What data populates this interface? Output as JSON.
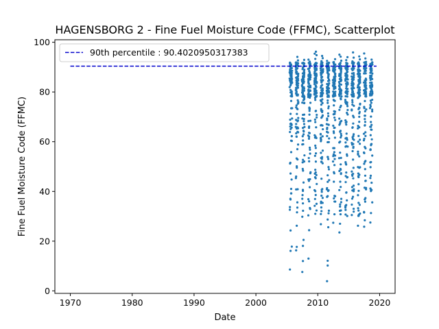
{
  "chart_data": {
    "type": "scatter",
    "title": "HAGENSBORG 2 - Fine Fuel Moisture Code (FFMC), Scatterplot",
    "xlabel": "Date",
    "ylabel": "Fine Fuel Moisture Code (FFMC)",
    "xlim": [
      1967.5,
      2022.5
    ],
    "ylim": [
      -1,
      101
    ],
    "x_ticks": [
      1970,
      1980,
      1990,
      2000,
      2010,
      2020
    ],
    "y_ticks": [
      0,
      20,
      40,
      60,
      80,
      100
    ],
    "grid": false,
    "legend_position": "top-left",
    "point_color": "#1f77b4",
    "reference_line": {
      "label": "90th percentile : 90.4020950317383",
      "y": 90.4020950317383,
      "x_range": [
        1970,
        2019.5
      ],
      "color": "#0000cc",
      "style": "dashed"
    },
    "seasons": [
      {
        "start": 2005.45,
        "end": 2005.85
      },
      {
        "start": 2006.45,
        "end": 2006.85
      },
      {
        "start": 2007.45,
        "end": 2007.85
      },
      {
        "start": 2008.45,
        "end": 2008.85
      },
      {
        "start": 2009.45,
        "end": 2009.85
      },
      {
        "start": 2010.45,
        "end": 2010.85
      },
      {
        "start": 2011.45,
        "end": 2011.85
      },
      {
        "start": 2012.45,
        "end": 2012.85
      },
      {
        "start": 2013.45,
        "end": 2013.85
      },
      {
        "start": 2014.45,
        "end": 2014.85
      },
      {
        "start": 2015.45,
        "end": 2015.85
      },
      {
        "start": 2016.45,
        "end": 2016.85
      },
      {
        "start": 2017.45,
        "end": 2017.85
      },
      {
        "start": 2018.45,
        "end": 2018.85
      }
    ],
    "points": [
      [
        2005.5,
        8.6
      ],
      [
        2005.6,
        16.1
      ],
      [
        2005.6,
        24.3
      ],
      [
        2005.5,
        33.7
      ],
      [
        2005.6,
        47.2
      ],
      [
        2005.7,
        55.8
      ],
      [
        2005.5,
        63.9
      ],
      [
        2005.6,
        71.2
      ],
      [
        2005.7,
        76.4
      ],
      [
        2005.6,
        80.8
      ],
      [
        2005.5,
        84.6
      ],
      [
        2005.7,
        86.9
      ],
      [
        2005.6,
        88.4
      ],
      [
        2005.8,
        89.6
      ],
      [
        2005.7,
        90.7
      ],
      [
        2005.5,
        91.8
      ],
      [
        2005.8,
        17.8
      ],
      [
        2005.7,
        41.0
      ],
      [
        2005.8,
        60.3
      ],
      [
        2005.8,
        79.2
      ],
      [
        2006.5,
        16.3
      ],
      [
        2006.6,
        17.7
      ],
      [
        2006.6,
        26.2
      ],
      [
        2006.7,
        33.5
      ],
      [
        2006.5,
        40.8
      ],
      [
        2006.6,
        50.1
      ],
      [
        2006.7,
        57.0
      ],
      [
        2006.6,
        65.3
      ],
      [
        2006.5,
        73.8
      ],
      [
        2006.7,
        78.9
      ],
      [
        2006.6,
        83.4
      ],
      [
        2006.8,
        86.2
      ],
      [
        2006.5,
        88.0
      ],
      [
        2006.7,
        89.5
      ],
      [
        2006.6,
        91.3
      ],
      [
        2006.8,
        92.7
      ],
      [
        2006.7,
        94.1
      ],
      [
        2006.8,
        68.5
      ],
      [
        2006.5,
        46.0
      ],
      [
        2006.8,
        81.7
      ],
      [
        2007.5,
        7.6
      ],
      [
        2007.6,
        12.0
      ],
      [
        2007.6,
        18.1
      ],
      [
        2007.7,
        20.5
      ],
      [
        2007.5,
        29.8
      ],
      [
        2007.6,
        35.2
      ],
      [
        2007.7,
        43.6
      ],
      [
        2007.6,
        52.7
      ],
      [
        2007.5,
        58.9
      ],
      [
        2007.7,
        64.4
      ],
      [
        2007.6,
        70.8
      ],
      [
        2007.8,
        75.5
      ],
      [
        2007.5,
        79.7
      ],
      [
        2007.7,
        83.6
      ],
      [
        2007.6,
        86.4
      ],
      [
        2007.8,
        88.7
      ],
      [
        2007.7,
        90.2
      ],
      [
        2007.5,
        91.6
      ],
      [
        2007.8,
        92.9
      ],
      [
        2007.6,
        40.2
      ],
      [
        2008.5,
        13.0
      ],
      [
        2008.6,
        24.4
      ],
      [
        2008.6,
        36.0
      ],
      [
        2008.7,
        41.7
      ],
      [
        2008.5,
        44.8
      ],
      [
        2008.6,
        52.1
      ],
      [
        2008.7,
        57.6
      ],
      [
        2008.6,
        62.0
      ],
      [
        2008.5,
        68.3
      ],
      [
        2008.7,
        73.2
      ],
      [
        2008.6,
        78.0
      ],
      [
        2008.8,
        82.5
      ],
      [
        2008.5,
        85.3
      ],
      [
        2008.7,
        87.8
      ],
      [
        2008.6,
        89.4
      ],
      [
        2008.8,
        90.8
      ],
      [
        2008.7,
        92.2
      ],
      [
        2008.5,
        93.0
      ],
      [
        2008.8,
        47.3
      ],
      [
        2008.6,
        66.1
      ],
      [
        2009.5,
        34.2
      ],
      [
        2009.6,
        40.1
      ],
      [
        2009.6,
        48.7
      ],
      [
        2009.7,
        55.3
      ],
      [
        2009.5,
        62.6
      ],
      [
        2009.6,
        67.9
      ],
      [
        2009.7,
        72.4
      ],
      [
        2009.6,
        76.8
      ],
      [
        2009.5,
        80.3
      ],
      [
        2009.7,
        83.9
      ],
      [
        2009.6,
        86.7
      ],
      [
        2009.8,
        88.9
      ],
      [
        2009.5,
        90.4
      ],
      [
        2009.7,
        91.7
      ],
      [
        2009.6,
        93.3
      ],
      [
        2009.8,
        94.8
      ],
      [
        2009.7,
        96.2
      ],
      [
        2009.5,
        95.4
      ],
      [
        2009.8,
        35.0
      ],
      [
        2009.6,
        58.4
      ],
      [
        2010.5,
        26.8
      ],
      [
        2010.6,
        38.3
      ],
      [
        2010.6,
        45.1
      ],
      [
        2010.7,
        53.8
      ],
      [
        2010.5,
        60.2
      ],
      [
        2010.6,
        66.7
      ],
      [
        2010.7,
        71.9
      ],
      [
        2010.6,
        76.2
      ],
      [
        2010.5,
        79.6
      ],
      [
        2010.7,
        82.8
      ],
      [
        2010.6,
        85.7
      ],
      [
        2010.8,
        87.9
      ],
      [
        2010.5,
        89.6
      ],
      [
        2010.7,
        91.0
      ],
      [
        2010.6,
        92.4
      ],
      [
        2010.8,
        93.6
      ],
      [
        2010.7,
        94.5
      ],
      [
        2010.5,
        30.9
      ],
      [
        2010.8,
        56.4
      ],
      [
        2010.6,
        84.1
      ],
      [
        2011.5,
        3.9
      ],
      [
        2011.6,
        10.2
      ],
      [
        2011.6,
        12.1
      ],
      [
        2011.7,
        25.6
      ],
      [
        2011.5,
        37.8
      ],
      [
        2011.6,
        46.5
      ],
      [
        2011.7,
        53.0
      ],
      [
        2011.6,
        59.8
      ],
      [
        2011.5,
        65.1
      ],
      [
        2011.7,
        70.3
      ],
      [
        2011.6,
        75.6
      ],
      [
        2011.8,
        79.8
      ],
      [
        2011.5,
        83.2
      ],
      [
        2011.7,
        86.0
      ],
      [
        2011.6,
        88.3
      ],
      [
        2011.8,
        89.9
      ],
      [
        2011.7,
        91.2
      ],
      [
        2011.5,
        92.5
      ],
      [
        2011.8,
        48.9
      ],
      [
        2011.6,
        28.7
      ],
      [
        2012.5,
        27.4
      ],
      [
        2012.6,
        37.2
      ],
      [
        2012.6,
        43.9
      ],
      [
        2012.7,
        50.6
      ],
      [
        2012.5,
        57.4
      ],
      [
        2012.6,
        63.5
      ],
      [
        2012.7,
        69.7
      ],
      [
        2012.6,
        74.6
      ],
      [
        2012.5,
        78.6
      ],
      [
        2012.7,
        82.0
      ],
      [
        2012.6,
        85.1
      ],
      [
        2012.8,
        87.4
      ],
      [
        2012.5,
        89.1
      ],
      [
        2012.7,
        90.6
      ],
      [
        2012.6,
        92.0
      ],
      [
        2012.8,
        93.2
      ],
      [
        2012.7,
        30.8
      ],
      [
        2012.5,
        54.2
      ],
      [
        2012.8,
        72.1
      ],
      [
        2012.6,
        88.2
      ],
      [
        2013.5,
        23.5
      ],
      [
        2013.6,
        27.0
      ],
      [
        2013.6,
        33.9
      ],
      [
        2013.7,
        41.8
      ],
      [
        2013.5,
        48.2
      ],
      [
        2013.6,
        55.6
      ],
      [
        2013.7,
        61.7
      ],
      [
        2013.6,
        67.3
      ],
      [
        2013.5,
        72.8
      ],
      [
        2013.7,
        77.4
      ],
      [
        2013.6,
        81.3
      ],
      [
        2013.8,
        84.7
      ],
      [
        2013.5,
        87.2
      ],
      [
        2013.7,
        89.0
      ],
      [
        2013.6,
        90.9
      ],
      [
        2013.8,
        92.6
      ],
      [
        2013.7,
        94.2
      ],
      [
        2013.5,
        95.0
      ],
      [
        2013.8,
        37.0
      ],
      [
        2013.6,
        64.0
      ],
      [
        2014.5,
        30.7
      ],
      [
        2014.6,
        39.5
      ],
      [
        2014.6,
        47.6
      ],
      [
        2014.7,
        54.9
      ],
      [
        2014.5,
        61.3
      ],
      [
        2014.6,
        66.9
      ],
      [
        2014.7,
        71.6
      ],
      [
        2014.6,
        76.0
      ],
      [
        2014.5,
        79.9
      ],
      [
        2014.7,
        83.1
      ],
      [
        2014.6,
        85.9
      ],
      [
        2014.8,
        88.1
      ],
      [
        2014.5,
        89.8
      ],
      [
        2014.7,
        91.4
      ],
      [
        2014.6,
        92.8
      ],
      [
        2014.8,
        94.0
      ],
      [
        2014.7,
        36.4
      ],
      [
        2014.5,
        58.0
      ],
      [
        2014.8,
        74.3
      ],
      [
        2014.6,
        87.0
      ],
      [
        2015.5,
        30.5
      ],
      [
        2015.6,
        40.4
      ],
      [
        2015.6,
        46.3
      ],
      [
        2015.7,
        52.8
      ],
      [
        2015.5,
        59.5
      ],
      [
        2015.6,
        65.6
      ],
      [
        2015.7,
        70.4
      ],
      [
        2015.6,
        74.9
      ],
      [
        2015.5,
        78.8
      ],
      [
        2015.7,
        82.4
      ],
      [
        2015.6,
        85.4
      ],
      [
        2015.8,
        87.6
      ],
      [
        2015.5,
        89.3
      ],
      [
        2015.7,
        90.9
      ],
      [
        2015.6,
        92.3
      ],
      [
        2015.8,
        93.8
      ],
      [
        2015.7,
        95.9
      ],
      [
        2015.5,
        48.0
      ],
      [
        2015.8,
        63.0
      ],
      [
        2015.6,
        80.5
      ],
      [
        2016.5,
        26.2
      ],
      [
        2016.6,
        35.4
      ],
      [
        2016.6,
        42.9
      ],
      [
        2016.7,
        49.5
      ],
      [
        2016.5,
        56.0
      ],
      [
        2016.6,
        62.3
      ],
      [
        2016.7,
        68.0
      ],
      [
        2016.6,
        73.1
      ],
      [
        2016.5,
        77.6
      ],
      [
        2016.7,
        81.5
      ],
      [
        2016.6,
        84.8
      ],
      [
        2016.8,
        87.3
      ],
      [
        2016.5,
        89.0
      ],
      [
        2016.7,
        90.5
      ],
      [
        2016.6,
        91.9
      ],
      [
        2016.8,
        93.1
      ],
      [
        2016.7,
        94.3
      ],
      [
        2016.5,
        38.5
      ],
      [
        2016.8,
        60.8
      ],
      [
        2016.6,
        83.0
      ],
      [
        2017.5,
        25.8
      ],
      [
        2017.6,
        28.4
      ],
      [
        2017.6,
        36.8
      ],
      [
        2017.7,
        44.2
      ],
      [
        2017.5,
        51.1
      ],
      [
        2017.6,
        57.9
      ],
      [
        2017.7,
        63.8
      ],
      [
        2017.6,
        69.1
      ],
      [
        2017.5,
        74.0
      ],
      [
        2017.7,
        78.3
      ],
      [
        2017.6,
        82.1
      ],
      [
        2017.8,
        85.0
      ],
      [
        2017.5,
        87.5
      ],
      [
        2017.7,
        89.2
      ],
      [
        2017.6,
        90.8
      ],
      [
        2017.8,
        92.1
      ],
      [
        2017.7,
        93.5
      ],
      [
        2017.5,
        95.5
      ],
      [
        2017.8,
        41.4
      ],
      [
        2017.6,
        66.5
      ],
      [
        2018.5,
        27.5
      ],
      [
        2018.6,
        31.3
      ],
      [
        2018.6,
        40.7
      ],
      [
        2018.7,
        43.5
      ],
      [
        2018.5,
        51.7
      ],
      [
        2018.6,
        58.6
      ],
      [
        2018.7,
        64.8
      ],
      [
        2018.6,
        70.1
      ],
      [
        2018.5,
        74.8
      ],
      [
        2018.7,
        78.7
      ],
      [
        2018.6,
        82.2
      ],
      [
        2018.8,
        85.2
      ],
      [
        2018.5,
        87.7
      ],
      [
        2018.7,
        89.3
      ],
      [
        2018.6,
        90.7
      ],
      [
        2018.8,
        91.9
      ],
      [
        2018.7,
        93.0
      ],
      [
        2018.5,
        56.7
      ],
      [
        2018.8,
        72.9
      ],
      [
        2018.6,
        88.6
      ]
    ]
  }
}
